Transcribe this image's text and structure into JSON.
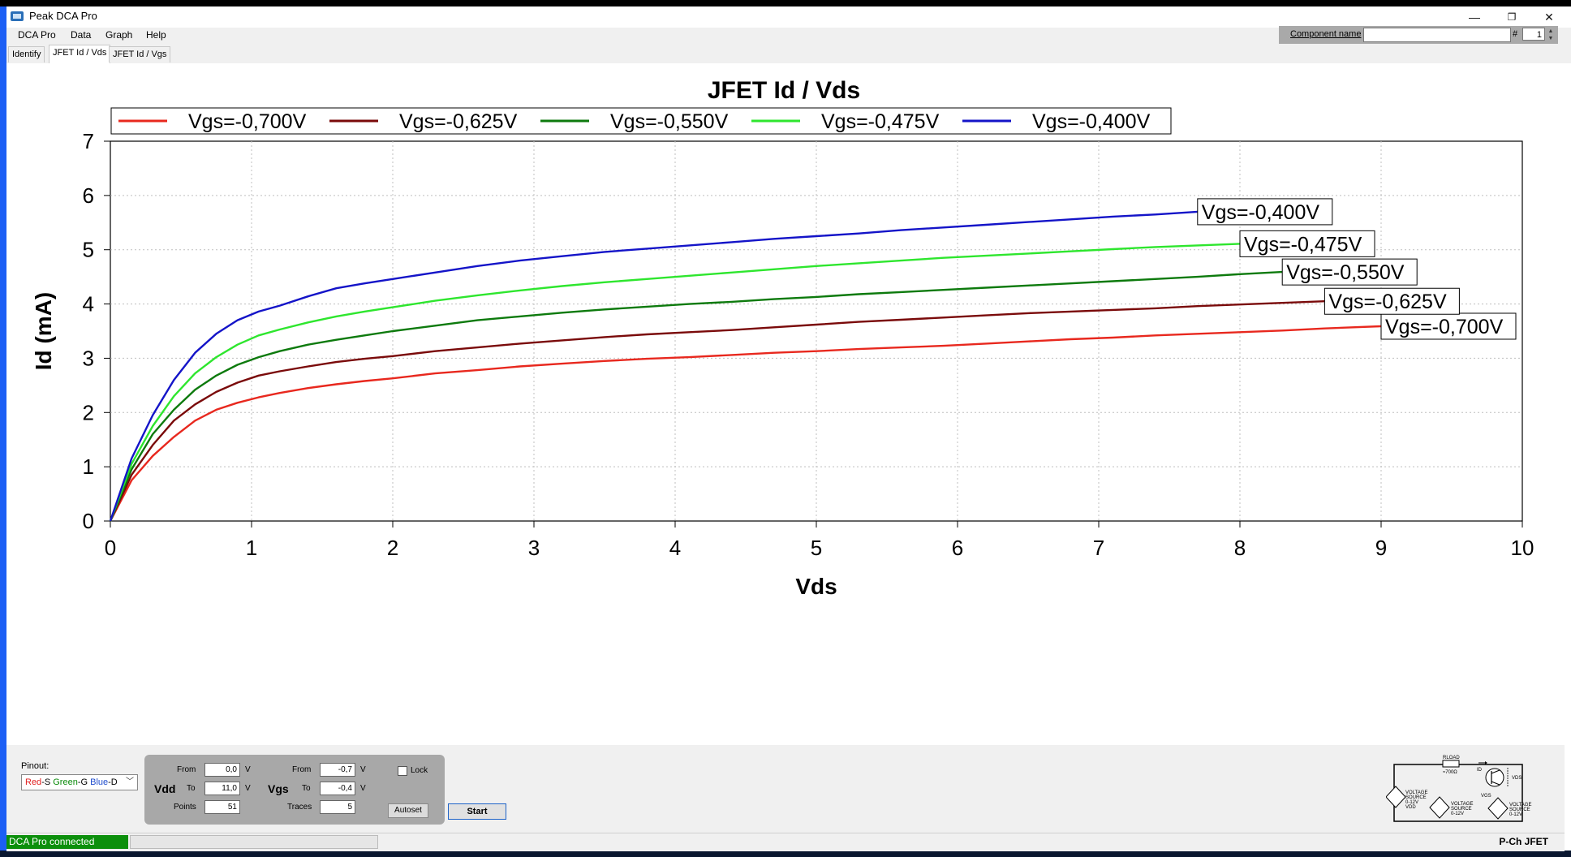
{
  "window": {
    "title": "Peak DCA Pro",
    "minimize_glyph": "—",
    "restore_glyph": "❐",
    "close_glyph": "✕"
  },
  "menu": [
    "DCA Pro",
    "Data",
    "Graph",
    "Help"
  ],
  "tabs": [
    {
      "label": "Identify",
      "active": false
    },
    {
      "label": "JFET Id / Vds",
      "active": true
    },
    {
      "label": "JFET Id / Vgs",
      "active": false
    }
  ],
  "component": {
    "label": "Component name",
    "value": "",
    "hash": "#",
    "number": "1"
  },
  "chart_data": {
    "type": "line",
    "title": "JFET Id / Vds",
    "xlabel": "Vds",
    "ylabel": "Id (mA)",
    "xlim": [
      0,
      10
    ],
    "ylim": [
      0,
      7
    ],
    "xticks": [
      "0",
      "1",
      "2",
      "3",
      "4",
      "5",
      "6",
      "7",
      "8",
      "9",
      "10"
    ],
    "yticks": [
      "0",
      "1",
      "2",
      "3",
      "4",
      "5",
      "6",
      "7"
    ],
    "grid": true,
    "legend_position": "top",
    "series": [
      {
        "name": "Vgs=-0,700V",
        "color": "#e8281e",
        "end_label": "Vgs=-0,700V",
        "x": [
          0,
          0.15,
          0.3,
          0.45,
          0.6,
          0.75,
          0.9,
          1.05,
          1.2,
          1.4,
          1.6,
          1.8,
          2.0,
          2.3,
          2.6,
          2.9,
          3.2,
          3.5,
          3.8,
          4.1,
          4.4,
          4.7,
          5.0,
          5.3,
          5.6,
          5.9,
          6.2,
          6.5,
          6.8,
          7.1,
          7.4,
          7.7,
          8.0,
          8.3,
          8.6,
          9.0
        ],
        "y": [
          0,
          0.75,
          1.2,
          1.55,
          1.85,
          2.05,
          2.18,
          2.28,
          2.36,
          2.45,
          2.52,
          2.58,
          2.63,
          2.72,
          2.78,
          2.85,
          2.9,
          2.95,
          2.99,
          3.02,
          3.06,
          3.1,
          3.13,
          3.17,
          3.2,
          3.23,
          3.27,
          3.31,
          3.35,
          3.38,
          3.42,
          3.45,
          3.48,
          3.51,
          3.55,
          3.59
        ]
      },
      {
        "name": "Vgs=-0,625V",
        "color": "#7a0a0a",
        "end_label": "Vgs=-0,625V",
        "x": [
          0,
          0.15,
          0.3,
          0.45,
          0.6,
          0.75,
          0.9,
          1.05,
          1.2,
          1.4,
          1.6,
          1.8,
          2.0,
          2.3,
          2.6,
          2.9,
          3.2,
          3.5,
          3.8,
          4.1,
          4.4,
          4.7,
          5.0,
          5.3,
          5.6,
          5.9,
          6.2,
          6.5,
          6.8,
          7.1,
          7.4,
          7.7,
          8.0,
          8.3,
          8.6
        ],
        "y": [
          0,
          0.85,
          1.4,
          1.85,
          2.15,
          2.38,
          2.55,
          2.68,
          2.76,
          2.85,
          2.93,
          2.99,
          3.04,
          3.13,
          3.2,
          3.27,
          3.33,
          3.39,
          3.44,
          3.48,
          3.52,
          3.57,
          3.62,
          3.67,
          3.71,
          3.75,
          3.79,
          3.83,
          3.86,
          3.89,
          3.92,
          3.96,
          3.99,
          4.02,
          4.05
        ]
      },
      {
        "name": "Vgs=-0,550V",
        "color": "#0d7a0d",
        "end_label": "Vgs=-0,550V",
        "x": [
          0,
          0.15,
          0.3,
          0.45,
          0.6,
          0.75,
          0.9,
          1.05,
          1.2,
          1.4,
          1.6,
          1.8,
          2.0,
          2.3,
          2.6,
          2.9,
          3.2,
          3.5,
          3.8,
          4.1,
          4.4,
          4.7,
          5.0,
          5.3,
          5.6,
          5.9,
          6.2,
          6.5,
          6.8,
          7.1,
          7.4,
          7.7,
          8.0,
          8.3
        ],
        "y": [
          0,
          0.95,
          1.6,
          2.05,
          2.42,
          2.68,
          2.88,
          3.02,
          3.13,
          3.25,
          3.34,
          3.42,
          3.5,
          3.6,
          3.7,
          3.77,
          3.84,
          3.9,
          3.95,
          4.0,
          4.04,
          4.09,
          4.13,
          4.18,
          4.22,
          4.26,
          4.3,
          4.34,
          4.38,
          4.42,
          4.46,
          4.5,
          4.55,
          4.59
        ]
      },
      {
        "name": "Vgs=-0,475V",
        "color": "#2ee62e",
        "end_label": "Vgs=-0,475V",
        "x": [
          0,
          0.15,
          0.3,
          0.45,
          0.6,
          0.75,
          0.9,
          1.05,
          1.2,
          1.4,
          1.6,
          1.8,
          2.0,
          2.3,
          2.6,
          2.9,
          3.2,
          3.5,
          3.8,
          4.1,
          4.4,
          4.7,
          5.0,
          5.3,
          5.6,
          5.9,
          6.2,
          6.5,
          6.8,
          7.1,
          7.4,
          7.7,
          8.0
        ],
        "y": [
          0,
          1.05,
          1.75,
          2.3,
          2.72,
          3.02,
          3.25,
          3.42,
          3.53,
          3.66,
          3.77,
          3.86,
          3.94,
          4.06,
          4.16,
          4.25,
          4.33,
          4.4,
          4.46,
          4.52,
          4.58,
          4.64,
          4.7,
          4.75,
          4.8,
          4.85,
          4.89,
          4.93,
          4.97,
          5.01,
          5.05,
          5.08,
          5.11
        ]
      },
      {
        "name": "Vgs=-0,400V",
        "color": "#1414c8",
        "end_label": "Vgs=-0,400V",
        "x": [
          0,
          0.15,
          0.3,
          0.45,
          0.6,
          0.75,
          0.9,
          1.05,
          1.2,
          1.4,
          1.6,
          1.8,
          2.0,
          2.3,
          2.6,
          2.9,
          3.2,
          3.5,
          3.8,
          4.1,
          4.4,
          4.7,
          5.0,
          5.3,
          5.6,
          5.9,
          6.2,
          6.5,
          6.8,
          7.1,
          7.4,
          7.7
        ],
        "y": [
          0,
          1.15,
          1.95,
          2.6,
          3.1,
          3.45,
          3.7,
          3.86,
          3.97,
          4.14,
          4.29,
          4.38,
          4.46,
          4.58,
          4.7,
          4.8,
          4.88,
          4.96,
          5.02,
          5.08,
          5.14,
          5.2,
          5.25,
          5.3,
          5.36,
          5.41,
          5.46,
          5.51,
          5.56,
          5.61,
          5.65,
          5.7
        ]
      }
    ]
  },
  "controls": {
    "pinout_label": "Pinout:",
    "pinout_parts": [
      {
        "text": "Red",
        "color": "#e11f1f"
      },
      {
        "text": "-S ",
        "color": "#000000"
      },
      {
        "text": "Green",
        "color": "#0a8a0a"
      },
      {
        "text": "-G ",
        "color": "#000000"
      },
      {
        "text": "Blue",
        "color": "#1f4ccc"
      },
      {
        "text": "-D",
        "color": "#000000"
      }
    ],
    "vdd": {
      "label": "Vdd",
      "from_label": "From",
      "from": "0,0",
      "to_label": "To",
      "to": "11,0",
      "unit": "V"
    },
    "vgs": {
      "label": "Vgs",
      "from_label": "From",
      "from": "-0,7",
      "to_label": "To",
      "to": "-0,4",
      "unit": "V"
    },
    "points_label": "Points",
    "points": "51",
    "traces_label": "Traces",
    "traces": "5",
    "lock_label": "Lock",
    "autoset_label": "Autoset",
    "start_label": "Start"
  },
  "circuit": {
    "rload": "RLOAD",
    "rload_value": "≈700Ω",
    "id": "ID",
    "vds": "VDS",
    "vgs": "VGS",
    "vdd": "VDD",
    "source_label_1": "VOLTAGE",
    "source_label_2": "SOURCE",
    "source_range": "0-12V"
  },
  "status": {
    "connection": "DCA Pro connected",
    "device": "P-Ch JFET"
  }
}
